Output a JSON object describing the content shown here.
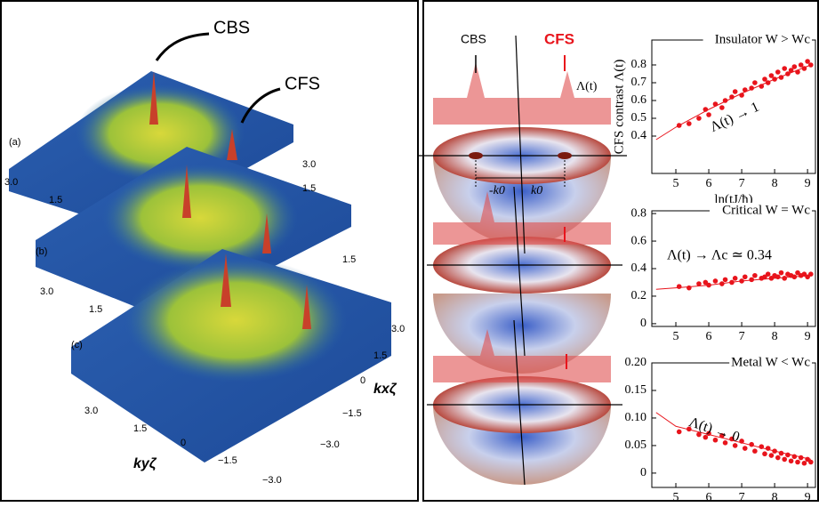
{
  "left_panel": {
    "peak_labels": [
      "CBS",
      "CFS"
    ],
    "panel_labels": [
      "(a)",
      "(b)",
      "(c)"
    ],
    "ticks": [
      "3.0",
      "1.5",
      "0",
      "−1.5",
      "−3.0"
    ],
    "axis_labels": [
      "kyζ",
      "kxζ"
    ]
  },
  "spheres": {
    "labels": [
      "CBS",
      "CFS",
      "Λ(t)",
      "-k0",
      "k0"
    ]
  },
  "chart_data": [
    {
      "type": "scatter",
      "title": "Insulator W > Wc",
      "ylabel": "CFS contrast Λ(t)",
      "xlabel": "ln(tJ/ħ)",
      "annotation": "Λ(t) → 1",
      "color": "#e8141c",
      "x": [
        5.1,
        5.4,
        5.7,
        5.9,
        6.0,
        6.2,
        6.4,
        6.5,
        6.7,
        6.8,
        7.0,
        7.1,
        7.3,
        7.4,
        7.6,
        7.7,
        7.8,
        7.9,
        8.0,
        8.1,
        8.2,
        8.3,
        8.4,
        8.5,
        8.6,
        8.7,
        8.8,
        8.9,
        9.0,
        9.1
      ],
      "values": [
        0.46,
        0.47,
        0.5,
        0.55,
        0.52,
        0.58,
        0.56,
        0.6,
        0.62,
        0.65,
        0.63,
        0.66,
        0.67,
        0.7,
        0.68,
        0.72,
        0.7,
        0.74,
        0.72,
        0.76,
        0.73,
        0.78,
        0.75,
        0.77,
        0.79,
        0.76,
        0.8,
        0.78,
        0.82,
        0.8
      ],
      "line": {
        "x": [
          4.4,
          5,
          6,
          7,
          8,
          9.1
        ],
        "values": [
          0.38,
          0.45,
          0.55,
          0.64,
          0.72,
          0.8
        ]
      },
      "xlim": [
        4.27,
        9.24
      ],
      "xticks": [
        5,
        6,
        7,
        8,
        9
      ],
      "ylim": [
        0.19,
        0.94
      ],
      "yticks": [
        0.4,
        0.5,
        0.6,
        0.7,
        0.8
      ]
    },
    {
      "type": "scatter",
      "title": "Critical W = Wc",
      "annotation": "Λ(t) → Λc ≃ 0.34",
      "color": "#e8141c",
      "x": [
        5.1,
        5.4,
        5.7,
        5.9,
        6.0,
        6.2,
        6.4,
        6.5,
        6.7,
        6.8,
        7.0,
        7.1,
        7.3,
        7.4,
        7.6,
        7.7,
        7.8,
        7.9,
        8.0,
        8.1,
        8.2,
        8.3,
        8.4,
        8.5,
        8.6,
        8.7,
        8.8,
        8.9,
        9.0,
        9.1
      ],
      "values": [
        0.27,
        0.26,
        0.29,
        0.3,
        0.28,
        0.31,
        0.29,
        0.32,
        0.3,
        0.33,
        0.31,
        0.34,
        0.32,
        0.35,
        0.33,
        0.34,
        0.36,
        0.33,
        0.35,
        0.34,
        0.37,
        0.33,
        0.36,
        0.35,
        0.34,
        0.37,
        0.35,
        0.36,
        0.34,
        0.36
      ],
      "line": {
        "x": [
          4.4,
          5,
          6,
          7,
          8,
          9.1
        ],
        "values": [
          0.25,
          0.26,
          0.28,
          0.31,
          0.33,
          0.35
        ]
      },
      "xlim": [
        4.27,
        9.24
      ],
      "xticks": [
        5,
        6,
        7,
        8,
        9
      ],
      "ylim": [
        -0.02,
        0.82
      ],
      "yticks": [
        0,
        0.2,
        0.4,
        0.6,
        0.8
      ]
    },
    {
      "type": "scatter",
      "title": "Metal W < Wc",
      "annotation": "Λ(t) → 0",
      "color": "#e8141c",
      "x": [
        5.1,
        5.4,
        5.7,
        5.9,
        6.0,
        6.2,
        6.4,
        6.5,
        6.7,
        6.8,
        7.0,
        7.1,
        7.3,
        7.4,
        7.6,
        7.7,
        7.8,
        7.9,
        8.0,
        8.1,
        8.2,
        8.3,
        8.4,
        8.5,
        8.6,
        8.7,
        8.8,
        8.9,
        9.0,
        9.1
      ],
      "values": [
        0.075,
        0.08,
        0.07,
        0.065,
        0.072,
        0.06,
        0.068,
        0.055,
        0.062,
        0.05,
        0.058,
        0.045,
        0.052,
        0.04,
        0.048,
        0.035,
        0.045,
        0.032,
        0.04,
        0.028,
        0.036,
        0.025,
        0.033,
        0.022,
        0.03,
        0.02,
        0.028,
        0.018,
        0.025,
        0.02
      ],
      "line": {
        "x": [
          4.4,
          5,
          6,
          7,
          8,
          9.1
        ],
        "values": [
          0.11,
          0.085,
          0.07,
          0.055,
          0.04,
          0.025
        ]
      },
      "xlim": [
        4.27,
        9.24
      ],
      "xticks": [
        5,
        6,
        7,
        8,
        9
      ],
      "ylim": [
        -0.026,
        0.2
      ],
      "yticks": [
        0,
        0.05,
        {
          "value": 0.1,
          "label": "0.10"
        },
        0.15,
        {
          "value": 0.2,
          "label": "0.20"
        }
      ]
    }
  ]
}
